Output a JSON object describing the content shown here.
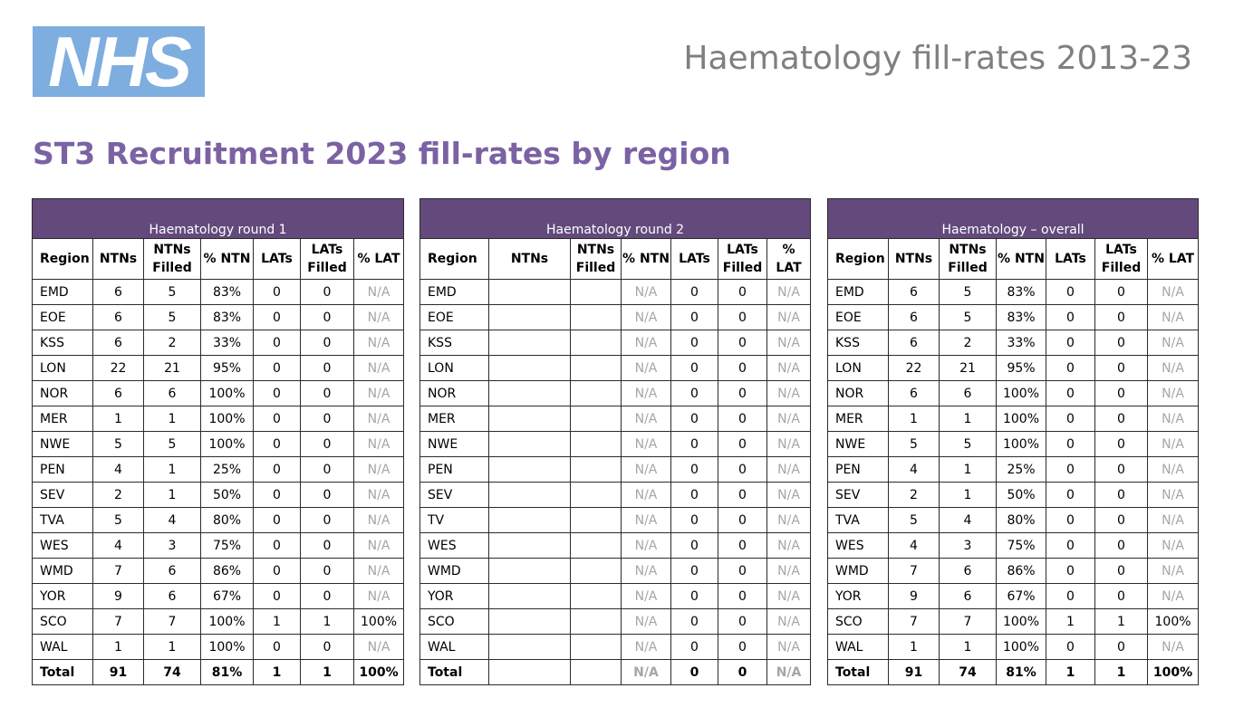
{
  "logo": {
    "text": "NHS"
  },
  "doc_title": "Haematology fill-rates 2013-23",
  "heading": "ST3 Recruitment 2023 fill-rates by region",
  "tables": [
    {
      "title": "Haematology round 1",
      "columns": [
        "Region",
        "NTNs",
        "NTNs Filled",
        "% NTN",
        "LATs",
        "LATs Filled",
        "% LAT"
      ],
      "rows": [
        [
          "EMD",
          "6",
          "5",
          "83%",
          "0",
          "0",
          "N/A"
        ],
        [
          "EOE",
          "6",
          "5",
          "83%",
          "0",
          "0",
          "N/A"
        ],
        [
          "KSS",
          "6",
          "2",
          "33%",
          "0",
          "0",
          "N/A"
        ],
        [
          "LON",
          "22",
          "21",
          "95%",
          "0",
          "0",
          "N/A"
        ],
        [
          "NOR",
          "6",
          "6",
          "100%",
          "0",
          "0",
          "N/A"
        ],
        [
          "MER",
          "1",
          "1",
          "100%",
          "0",
          "0",
          "N/A"
        ],
        [
          "NWE",
          "5",
          "5",
          "100%",
          "0",
          "0",
          "N/A"
        ],
        [
          "PEN",
          "4",
          "1",
          "25%",
          "0",
          "0",
          "N/A"
        ],
        [
          "SEV",
          "2",
          "1",
          "50%",
          "0",
          "0",
          "N/A"
        ],
        [
          "TVA",
          "5",
          "4",
          "80%",
          "0",
          "0",
          "N/A"
        ],
        [
          "WES",
          "4",
          "3",
          "75%",
          "0",
          "0",
          "N/A"
        ],
        [
          "WMD",
          "7",
          "6",
          "86%",
          "0",
          "0",
          "N/A"
        ],
        [
          "YOR",
          "9",
          "6",
          "67%",
          "0",
          "0",
          "N/A"
        ],
        [
          "SCO",
          "7",
          "7",
          "100%",
          "1",
          "1",
          "100%"
        ],
        [
          "WAL",
          "1",
          "1",
          "100%",
          "0",
          "0",
          "N/A"
        ],
        [
          "Total",
          "91",
          "74",
          "81%",
          "1",
          "1",
          "100%"
        ]
      ]
    },
    {
      "title": "Haematology round 2",
      "columns": [
        "Region",
        "NTNs",
        "NTNs Filled",
        "% NTN",
        "LATs",
        "LATs Filled",
        "% LAT"
      ],
      "rows": [
        [
          "EMD",
          "",
          "",
          "N/A",
          "0",
          "0",
          "N/A"
        ],
        [
          "EOE",
          "",
          "",
          "N/A",
          "0",
          "0",
          "N/A"
        ],
        [
          "KSS",
          "",
          "",
          "N/A",
          "0",
          "0",
          "N/A"
        ],
        [
          "LON",
          "",
          "",
          "N/A",
          "0",
          "0",
          "N/A"
        ],
        [
          "NOR",
          "",
          "",
          "N/A",
          "0",
          "0",
          "N/A"
        ],
        [
          "MER",
          "",
          "",
          "N/A",
          "0",
          "0",
          "N/A"
        ],
        [
          "NWE",
          "",
          "",
          "N/A",
          "0",
          "0",
          "N/A"
        ],
        [
          "PEN",
          "",
          "",
          "N/A",
          "0",
          "0",
          "N/A"
        ],
        [
          "SEV",
          "",
          "",
          "N/A",
          "0",
          "0",
          "N/A"
        ],
        [
          "TV",
          "",
          "",
          "N/A",
          "0",
          "0",
          "N/A"
        ],
        [
          "WES",
          "",
          "",
          "N/A",
          "0",
          "0",
          "N/A"
        ],
        [
          "WMD",
          "",
          "",
          "N/A",
          "0",
          "0",
          "N/A"
        ],
        [
          "YOR",
          "",
          "",
          "N/A",
          "0",
          "0",
          "N/A"
        ],
        [
          "SCO",
          "",
          "",
          "N/A",
          "0",
          "0",
          "N/A"
        ],
        [
          "WAL",
          "",
          "",
          "N/A",
          "0",
          "0",
          "N/A"
        ],
        [
          "Total",
          "",
          "",
          "N/A",
          "0",
          "0",
          "N/A"
        ]
      ]
    },
    {
      "title": "Haematology – overall",
      "columns": [
        "Region",
        "NTNs",
        "NTNs Filled",
        "% NTN",
        "LATs",
        "LATs Filled",
        "% LAT"
      ],
      "rows": [
        [
          "EMD",
          "6",
          "5",
          "83%",
          "0",
          "0",
          "N/A"
        ],
        [
          "EOE",
          "6",
          "5",
          "83%",
          "0",
          "0",
          "N/A"
        ],
        [
          "KSS",
          "6",
          "2",
          "33%",
          "0",
          "0",
          "N/A"
        ],
        [
          "LON",
          "22",
          "21",
          "95%",
          "0",
          "0",
          "N/A"
        ],
        [
          "NOR",
          "6",
          "6",
          "100%",
          "0",
          "0",
          "N/A"
        ],
        [
          "MER",
          "1",
          "1",
          "100%",
          "0",
          "0",
          "N/A"
        ],
        [
          "NWE",
          "5",
          "5",
          "100%",
          "0",
          "0",
          "N/A"
        ],
        [
          "PEN",
          "4",
          "1",
          "25%",
          "0",
          "0",
          "N/A"
        ],
        [
          "SEV",
          "2",
          "1",
          "50%",
          "0",
          "0",
          "N/A"
        ],
        [
          "TVA",
          "5",
          "4",
          "80%",
          "0",
          "0",
          "N/A"
        ],
        [
          "WES",
          "4",
          "3",
          "75%",
          "0",
          "0",
          "N/A"
        ],
        [
          "WMD",
          "7",
          "6",
          "86%",
          "0",
          "0",
          "N/A"
        ],
        [
          "YOR",
          "9",
          "6",
          "67%",
          "0",
          "0",
          "N/A"
        ],
        [
          "SCO",
          "7",
          "7",
          "100%",
          "1",
          "1",
          "100%"
        ],
        [
          "WAL",
          "1",
          "1",
          "100%",
          "0",
          "0",
          "N/A"
        ],
        [
          "Total",
          "91",
          "74",
          "81%",
          "1",
          "1",
          "100%"
        ]
      ]
    }
  ],
  "colors": {
    "header_band": "#644A7C",
    "heading": "#7B62A3",
    "logo_bg": "#7EADDF",
    "title_grey": "#7f7f7f",
    "na_grey": "#a6a6a6"
  }
}
